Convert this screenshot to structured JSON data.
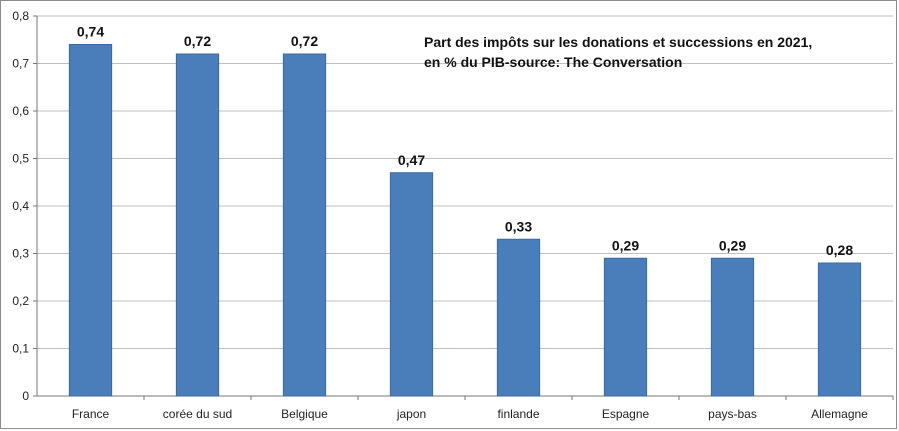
{
  "chart_data": {
    "type": "bar",
    "title": "Part des impôts sur les donations et successions en 2021, en % du PIB-source: The Conversation",
    "categories": [
      "France",
      "corée du sud",
      "Belgique",
      "japon",
      "finlande",
      "Espagne",
      "pays-bas",
      "Allemagne"
    ],
    "values": [
      0.74,
      0.72,
      0.72,
      0.47,
      0.33,
      0.29,
      0.29,
      0.28
    ],
    "value_labels": [
      "0,74",
      "0,72",
      "0,72",
      "0,47",
      "0,33",
      "0,29",
      "0,29",
      "0,28"
    ],
    "y_ticks": [
      "0",
      "0,1",
      "0,2",
      "0,3",
      "0,4",
      "0,5",
      "0,6",
      "0,7",
      "0,8"
    ],
    "ylim": [
      0,
      0.8
    ],
    "xlabel": "",
    "ylabel": "",
    "grid": true,
    "bar_color": "#4a7ebb",
    "grid_color": "#c0c0c0"
  }
}
